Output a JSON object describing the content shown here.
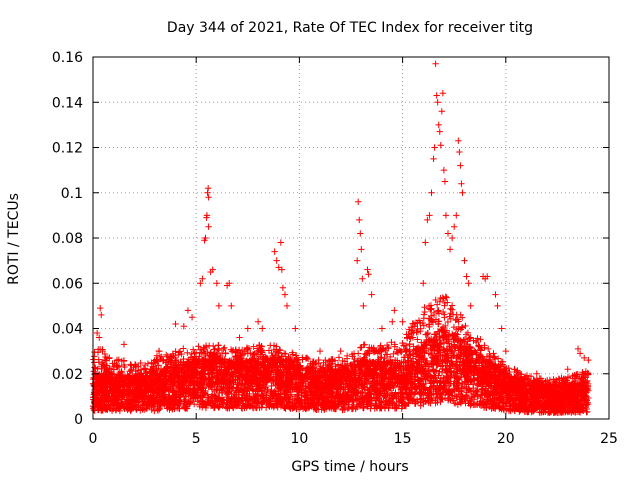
{
  "chart_data": {
    "type": "scatter",
    "title": "Day 344 of 2021, Rate Of TEC Index for receiver titg",
    "xlabel": "GPS time / hours",
    "ylabel": "ROTI / TECUs",
    "xlim": [
      0,
      25
    ],
    "ylim": [
      0,
      0.16
    ],
    "xticks": [
      0,
      5,
      10,
      15,
      20,
      25
    ],
    "xtick_labels": [
      "0",
      "5",
      "10",
      "15",
      "20",
      "25"
    ],
    "yticks": [
      0,
      0.02,
      0.04,
      0.06,
      0.08,
      0.1,
      0.12,
      0.14,
      0.16
    ],
    "ytick_labels": [
      "0",
      "0.02",
      "0.04",
      "0.06",
      "0.08",
      "0.1",
      "0.12",
      "0.14",
      "0.16"
    ],
    "grid": true,
    "marker": "+",
    "color": "#ff0000",
    "x_range_data": [
      0,
      24
    ],
    "baseline_profile": {
      "x": [
        0,
        1,
        2,
        3,
        4,
        5,
        6,
        7,
        8,
        9,
        10,
        11,
        12,
        13,
        14,
        15,
        16,
        17,
        18,
        19,
        20,
        21,
        22,
        23,
        24
      ],
      "median": [
        0.012,
        0.012,
        0.011,
        0.012,
        0.014,
        0.016,
        0.016,
        0.015,
        0.016,
        0.016,
        0.014,
        0.013,
        0.013,
        0.015,
        0.015,
        0.015,
        0.02,
        0.024,
        0.02,
        0.016,
        0.012,
        0.01,
        0.009,
        0.009,
        0.01
      ],
      "upper": [
        0.03,
        0.025,
        0.022,
        0.024,
        0.028,
        0.03,
        0.03,
        0.028,
        0.03,
        0.03,
        0.026,
        0.024,
        0.025,
        0.03,
        0.03,
        0.032,
        0.045,
        0.05,
        0.04,
        0.03,
        0.022,
        0.018,
        0.016,
        0.017,
        0.02
      ]
    },
    "notable_points": [
      {
        "x": 0.2,
        "y": 0.038
      },
      {
        "x": 0.3,
        "y": 0.036
      },
      {
        "x": 0.35,
        "y": 0.049
      },
      {
        "x": 0.4,
        "y": 0.046
      },
      {
        "x": 1.5,
        "y": 0.033
      },
      {
        "x": 3.1,
        "y": 0.028
      },
      {
        "x": 3.2,
        "y": 0.03
      },
      {
        "x": 3.2,
        "y": 0.03
      },
      {
        "x": 3.2,
        "y": 0.03
      },
      {
        "x": 4.0,
        "y": 0.042
      },
      {
        "x": 4.4,
        "y": 0.041
      },
      {
        "x": 4.6,
        "y": 0.048
      },
      {
        "x": 4.8,
        "y": 0.045
      },
      {
        "x": 5.2,
        "y": 0.06
      },
      {
        "x": 5.3,
        "y": 0.062
      },
      {
        "x": 5.4,
        "y": 0.079
      },
      {
        "x": 5.45,
        "y": 0.08
      },
      {
        "x": 5.5,
        "y": 0.089
      },
      {
        "x": 5.52,
        "y": 0.09
      },
      {
        "x": 5.55,
        "y": 0.1
      },
      {
        "x": 5.58,
        "y": 0.102
      },
      {
        "x": 5.6,
        "y": 0.098
      },
      {
        "x": 5.6,
        "y": 0.085
      },
      {
        "x": 5.7,
        "y": 0.065
      },
      {
        "x": 5.8,
        "y": 0.066
      },
      {
        "x": 6.0,
        "y": 0.06
      },
      {
        "x": 6.1,
        "y": 0.05
      },
      {
        "x": 6.5,
        "y": 0.059
      },
      {
        "x": 6.6,
        "y": 0.06
      },
      {
        "x": 6.7,
        "y": 0.05
      },
      {
        "x": 7.1,
        "y": 0.036
      },
      {
        "x": 7.5,
        "y": 0.04
      },
      {
        "x": 8.0,
        "y": 0.043
      },
      {
        "x": 8.2,
        "y": 0.04
      },
      {
        "x": 8.8,
        "y": 0.074
      },
      {
        "x": 8.9,
        "y": 0.07
      },
      {
        "x": 9.0,
        "y": 0.067
      },
      {
        "x": 9.1,
        "y": 0.078
      },
      {
        "x": 9.15,
        "y": 0.066
      },
      {
        "x": 9.2,
        "y": 0.058
      },
      {
        "x": 9.3,
        "y": 0.055
      },
      {
        "x": 9.4,
        "y": 0.05
      },
      {
        "x": 9.8,
        "y": 0.04
      },
      {
        "x": 11.0,
        "y": 0.03
      },
      {
        "x": 12.0,
        "y": 0.03
      },
      {
        "x": 12.8,
        "y": 0.07
      },
      {
        "x": 12.85,
        "y": 0.096
      },
      {
        "x": 12.9,
        "y": 0.088
      },
      {
        "x": 12.95,
        "y": 0.082
      },
      {
        "x": 13.0,
        "y": 0.075
      },
      {
        "x": 13.05,
        "y": 0.062
      },
      {
        "x": 13.1,
        "y": 0.05
      },
      {
        "x": 13.3,
        "y": 0.066
      },
      {
        "x": 13.35,
        "y": 0.064
      },
      {
        "x": 13.5,
        "y": 0.055
      },
      {
        "x": 14.0,
        "y": 0.04
      },
      {
        "x": 14.5,
        "y": 0.043
      },
      {
        "x": 14.6,
        "y": 0.048
      },
      {
        "x": 15.0,
        "y": 0.043
      },
      {
        "x": 15.5,
        "y": 0.036
      },
      {
        "x": 16.0,
        "y": 0.06
      },
      {
        "x": 16.1,
        "y": 0.078
      },
      {
        "x": 16.2,
        "y": 0.088
      },
      {
        "x": 16.3,
        "y": 0.09
      },
      {
        "x": 16.4,
        "y": 0.1
      },
      {
        "x": 16.5,
        "y": 0.115
      },
      {
        "x": 16.55,
        "y": 0.12
      },
      {
        "x": 16.6,
        "y": 0.157
      },
      {
        "x": 16.65,
        "y": 0.143
      },
      {
        "x": 16.7,
        "y": 0.14
      },
      {
        "x": 16.75,
        "y": 0.13
      },
      {
        "x": 16.8,
        "y": 0.127
      },
      {
        "x": 16.85,
        "y": 0.121
      },
      {
        "x": 16.9,
        "y": 0.136
      },
      {
        "x": 16.95,
        "y": 0.144
      },
      {
        "x": 17.0,
        "y": 0.11
      },
      {
        "x": 17.05,
        "y": 0.105
      },
      {
        "x": 17.1,
        "y": 0.09
      },
      {
        "x": 17.2,
        "y": 0.082
      },
      {
        "x": 17.3,
        "y": 0.075
      },
      {
        "x": 17.4,
        "y": 0.08
      },
      {
        "x": 17.5,
        "y": 0.085
      },
      {
        "x": 17.6,
        "y": 0.09
      },
      {
        "x": 17.7,
        "y": 0.123
      },
      {
        "x": 17.75,
        "y": 0.118
      },
      {
        "x": 17.8,
        "y": 0.112
      },
      {
        "x": 17.85,
        "y": 0.104
      },
      {
        "x": 17.9,
        "y": 0.1
      },
      {
        "x": 18.0,
        "y": 0.07
      },
      {
        "x": 18.1,
        "y": 0.063
      },
      {
        "x": 18.2,
        "y": 0.06
      },
      {
        "x": 18.3,
        "y": 0.05
      },
      {
        "x": 18.9,
        "y": 0.063
      },
      {
        "x": 19.0,
        "y": 0.062
      },
      {
        "x": 19.1,
        "y": 0.063
      },
      {
        "x": 19.5,
        "y": 0.055
      },
      {
        "x": 19.6,
        "y": 0.05
      },
      {
        "x": 19.8,
        "y": 0.04
      },
      {
        "x": 20.0,
        "y": 0.03
      },
      {
        "x": 21.5,
        "y": 0.02
      },
      {
        "x": 23.0,
        "y": 0.022
      },
      {
        "x": 23.5,
        "y": 0.031
      },
      {
        "x": 23.6,
        "y": 0.029
      },
      {
        "x": 23.8,
        "y": 0.027
      },
      {
        "x": 24.0,
        "y": 0.026
      }
    ]
  }
}
